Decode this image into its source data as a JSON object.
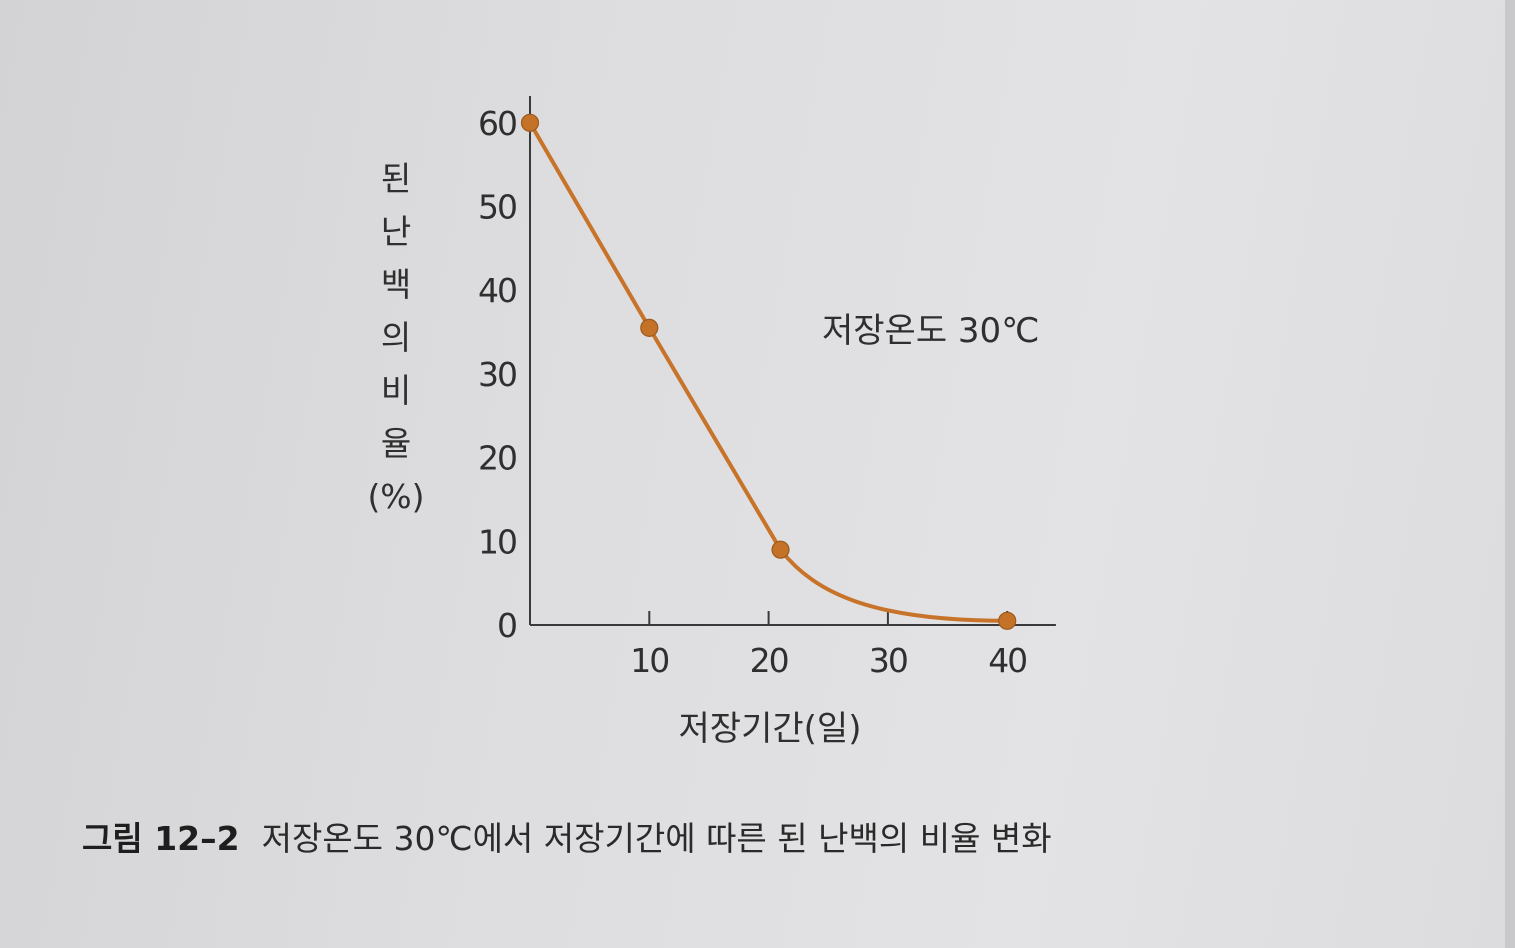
{
  "chart_data": {
    "type": "line",
    "x": [
      0,
      10,
      21,
      40
    ],
    "y": [
      60,
      35.5,
      9,
      0.5
    ],
    "xticks": [
      "10",
      "20",
      "30",
      "40"
    ],
    "yticks": [
      "0",
      "10",
      "20",
      "30",
      "40",
      "50",
      "60"
    ],
    "xlim": [
      0,
      44
    ],
    "ylim": [
      0,
      62
    ],
    "xlabel": "저장기간(일)",
    "ylabel_chars": [
      "된",
      "난",
      "백",
      "의",
      "비",
      "율",
      "(%)"
    ],
    "annotation": "저장온도 30℃",
    "grid": false,
    "line_color": "#c7742a",
    "marker_color": "#c47228"
  },
  "caption": {
    "label": "그림 12–2",
    "text": "저장온도 30℃에서 저장기간에 따른 된 난백의 비율 변화"
  }
}
